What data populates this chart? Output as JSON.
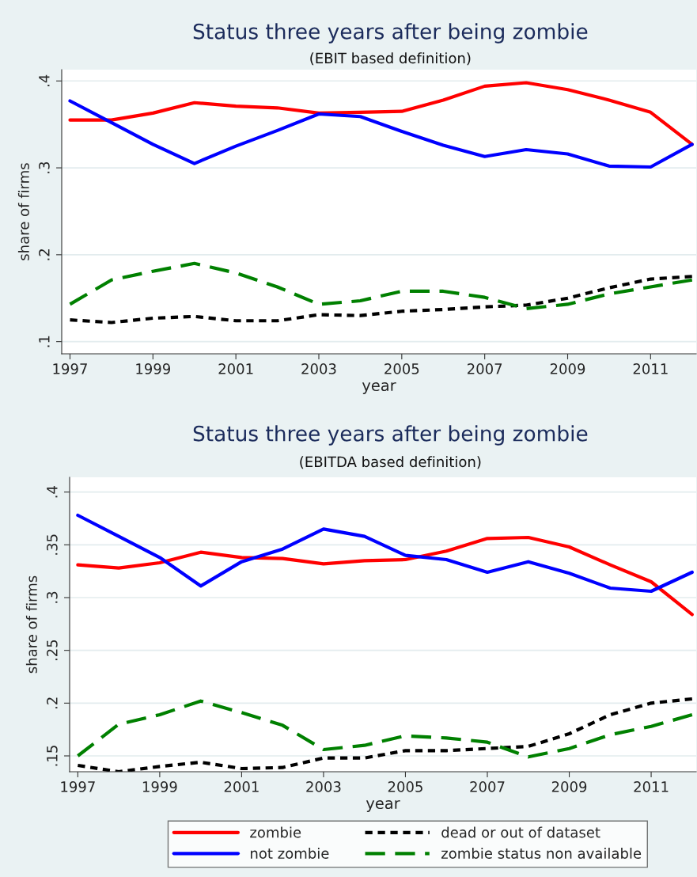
{
  "chart_data": [
    {
      "type": "line",
      "title": "Status three years after being zombie",
      "subtitle": "(EBIT based definition)",
      "xlabel": "year",
      "ylabel": "share of firms",
      "x": [
        1997,
        1998,
        1999,
        2000,
        2001,
        2002,
        2003,
        2004,
        2005,
        2006,
        2007,
        2008,
        2009,
        2010,
        2011,
        2012
      ],
      "xlim": [
        1996.8,
        2012.1
      ],
      "xticks": [
        1997,
        1999,
        2001,
        2003,
        2005,
        2007,
        2009,
        2011
      ],
      "ylim": [
        0.086,
        0.413
      ],
      "yticks": [
        {
          "value": 0.1,
          "label": ".1"
        },
        {
          "value": 0.2,
          "label": ".2"
        },
        {
          "value": 0.3,
          "label": ".3"
        },
        {
          "value": 0.4,
          "label": ".4"
        }
      ],
      "grid": "y",
      "legend": false,
      "series": [
        {
          "color": "#ff0000",
          "line_style": "solid",
          "values": [
            0.355,
            0.355,
            0.363,
            0.375,
            0.371,
            0.369,
            0.363,
            0.364,
            0.365,
            0.378,
            0.394,
            0.398,
            0.39,
            0.378,
            0.364,
            0.327
          ]
        },
        {
          "color": "#0000ff",
          "line_style": "solid",
          "values": [
            0.377,
            0.352,
            0.327,
            0.305,
            0.325,
            0.343,
            0.362,
            0.359,
            0.342,
            0.326,
            0.313,
            0.321,
            0.316,
            0.302,
            0.301,
            0.327
          ]
        },
        {
          "color": "#000000",
          "line_style": "dotted",
          "values": [
            0.125,
            0.122,
            0.127,
            0.129,
            0.124,
            0.124,
            0.131,
            0.13,
            0.135,
            0.137,
            0.14,
            0.142,
            0.15,
            0.162,
            0.172,
            0.175
          ]
        },
        {
          "color": "#008000",
          "line_style": "dashed",
          "values": [
            0.143,
            0.171,
            0.181,
            0.19,
            0.179,
            0.163,
            0.143,
            0.147,
            0.158,
            0.158,
            0.151,
            0.138,
            0.143,
            0.155,
            0.163,
            0.171
          ]
        }
      ]
    },
    {
      "type": "line",
      "title": "Status three years after being zombie",
      "subtitle": "(EBITDA based definition)",
      "xlabel": "year",
      "ylabel": "share of firms",
      "x": [
        1997,
        1998,
        1999,
        2000,
        2001,
        2002,
        2003,
        2004,
        2005,
        2006,
        2007,
        2008,
        2009,
        2010,
        2011,
        2012
      ],
      "xlim": [
        1996.8,
        2012.1
      ],
      "xticks": [
        1997,
        1999,
        2001,
        2003,
        2005,
        2007,
        2009,
        2011
      ],
      "ylim": [
        0.135,
        0.414
      ],
      "yticks": [
        {
          "value": 0.15,
          "label": ".15"
        },
        {
          "value": 0.2,
          "label": ".2"
        },
        {
          "value": 0.25,
          "label": ".25"
        },
        {
          "value": 0.3,
          "label": ".3"
        },
        {
          "value": 0.35,
          "label": ".35"
        },
        {
          "value": 0.4,
          "label": ".4"
        }
      ],
      "grid": "y",
      "legend": "bottom",
      "series": [
        {
          "name": "zombie",
          "color": "#ff0000",
          "line_style": "solid",
          "values": [
            0.331,
            0.328,
            0.333,
            0.343,
            0.338,
            0.337,
            0.332,
            0.335,
            0.336,
            0.344,
            0.356,
            0.357,
            0.348,
            0.331,
            0.315,
            0.284
          ]
        },
        {
          "name": "not zombie",
          "color": "#0000ff",
          "line_style": "solid",
          "values": [
            0.378,
            0.358,
            0.338,
            0.311,
            0.334,
            0.346,
            0.365,
            0.358,
            0.34,
            0.336,
            0.324,
            0.334,
            0.323,
            0.309,
            0.306,
            0.324
          ]
        },
        {
          "name": "dead or out of dataset",
          "color": "#000000",
          "line_style": "dotted",
          "values": [
            0.141,
            0.135,
            0.14,
            0.144,
            0.138,
            0.139,
            0.148,
            0.148,
            0.155,
            0.155,
            0.157,
            0.159,
            0.171,
            0.189,
            0.2,
            0.204
          ]
        },
        {
          "name": "zombie status non available",
          "color": "#008000",
          "line_style": "dashed",
          "values": [
            0.15,
            0.18,
            0.189,
            0.202,
            0.191,
            0.179,
            0.156,
            0.16,
            0.169,
            0.167,
            0.163,
            0.149,
            0.157,
            0.17,
            0.178,
            0.189
          ]
        }
      ]
    }
  ]
}
